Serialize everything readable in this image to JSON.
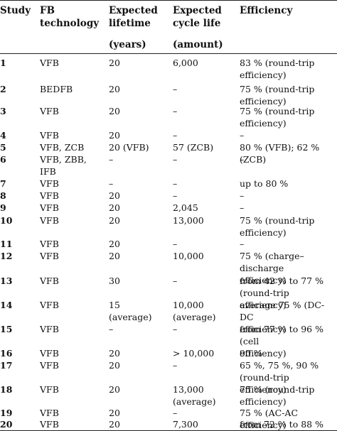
{
  "headers": {
    "study": "Study",
    "technology": "FB\ntechnology",
    "lifetime": "Expected\nlifetime",
    "cycle_life": "Expected\ncycle life",
    "efficiency": "Efficiency"
  },
  "units": {
    "lifetime": "(years)",
    "cycle_life": "(amount)"
  },
  "rows": [
    {
      "study": "1",
      "technology": "VFB",
      "lifetime": "20",
      "cycle_life": "6,000",
      "efficiency": "83 % (round-trip\nefficiency)"
    },
    {
      "study": "2",
      "technology": "BEDFB",
      "lifetime": "20",
      "cycle_life": "–",
      "efficiency": "75 % (round-trip\nefficiency)"
    },
    {
      "study": "3",
      "technology": "VFB",
      "lifetime": "20",
      "cycle_life": "–",
      "efficiency": "75 % (round-trip\nefficiency)"
    },
    {
      "study": "4",
      "technology": "VFB",
      "lifetime": "20",
      "cycle_life": "–",
      "efficiency": "–"
    },
    {
      "study": "5",
      "technology": "VFB, ZCB",
      "lifetime": "20 (VFB)",
      "cycle_life": "57 (ZCB)",
      "efficiency": "80 % (VFB); 62 % (ZCB)"
    },
    {
      "study": "6",
      "technology": "VFB, ZBB,\nIFB",
      "lifetime": "–",
      "cycle_life": "–",
      "efficiency": "–"
    },
    {
      "study": "7",
      "technology": "VFB",
      "lifetime": "–",
      "cycle_life": "–",
      "efficiency": "up to 80 %"
    },
    {
      "study": "8",
      "technology": "VFB",
      "lifetime": "20",
      "cycle_life": "–",
      "efficiency": "–"
    },
    {
      "study": "9",
      "technology": "VFB",
      "lifetime": "20",
      "cycle_life": "2,045",
      "efficiency": "–"
    },
    {
      "study": "10",
      "technology": "VFB",
      "lifetime": "20",
      "cycle_life": "13,000",
      "efficiency": "75 % (round-trip\nefficiency)"
    },
    {
      "study": "11",
      "technology": "VFB",
      "lifetime": "20",
      "cycle_life": "–",
      "efficiency": "–"
    },
    {
      "study": "12",
      "technology": "VFB",
      "lifetime": "20",
      "cycle_life": "10,000",
      "efficiency": "75 % (charge–discharge\nefficiency)"
    },
    {
      "study": "13",
      "technology": "VFB",
      "lifetime": "30",
      "cycle_life": "–",
      "efficiency": "from 42 % to 77 %\n(round-trip efficiency)"
    },
    {
      "study": "14",
      "technology": "VFB",
      "lifetime": "15\n(average)",
      "cycle_life": "10,000\n(average)",
      "efficiency": "average 75 % (DC-DC\nefficiency)"
    },
    {
      "study": "15",
      "technology": "VFB",
      "lifetime": "–",
      "cycle_life": "–",
      "efficiency": "from 77 % to 96 % (cell\nefficiency)"
    },
    {
      "study": "16",
      "technology": "VFB",
      "lifetime": "20",
      "cycle_life": "> 10,000",
      "efficiency": "90 %"
    },
    {
      "study": "17",
      "technology": "VFB",
      "lifetime": "20",
      "cycle_life": "–",
      "efficiency": "65 %, 75 %, 90 %\n(round-trip efficiency)"
    },
    {
      "study": "18",
      "technology": "VFB",
      "lifetime": "20",
      "cycle_life": "13,000\n(average)",
      "efficiency": "75 % (round-trip\nefficiency)"
    },
    {
      "study": "19",
      "technology": "VFB",
      "lifetime": "20",
      "cycle_life": "–",
      "efficiency": "75 % (AC-AC efficiency)"
    },
    {
      "study": "20",
      "technology": "VFB",
      "lifetime": "20",
      "cycle_life": "7,300",
      "efficiency": "from 72 % to 88 %"
    }
  ]
}
